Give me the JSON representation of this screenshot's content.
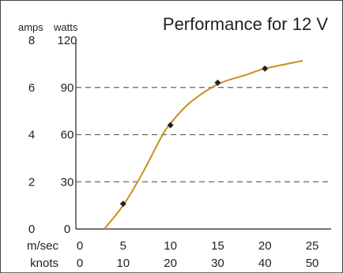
{
  "chart_data": {
    "type": "line",
    "title": "Performance for 12 V",
    "y_axes": [
      {
        "label": "amps",
        "ticks": [
          0,
          2,
          4,
          6,
          8
        ],
        "range": [
          0,
          8
        ]
      },
      {
        "label": "watts",
        "ticks": [
          0,
          30,
          60,
          90,
          120
        ],
        "range": [
          0,
          120
        ]
      }
    ],
    "x_axes": [
      {
        "label": "m/sec",
        "ticks": [
          0,
          5,
          10,
          15,
          20,
          25
        ],
        "range": [
          0,
          27
        ]
      },
      {
        "label": "knots",
        "ticks": [
          0,
          10,
          20,
          30,
          40,
          50
        ]
      }
    ],
    "gridlines_watts": [
      30,
      60,
      90
    ],
    "grid": "dashed horizontal",
    "series": [
      {
        "color": "#c8901e",
        "x": [
          3,
          5,
          7,
          9,
          10,
          12,
          15,
          18,
          20,
          24
        ],
        "y": [
          0,
          15,
          35,
          58,
          67,
          80,
          92,
          98,
          102,
          107
        ],
        "markers": [
          {
            "x": 5,
            "y": 16
          },
          {
            "x": 10,
            "y": 66
          },
          {
            "x": 15,
            "y": 93
          },
          {
            "x": 20,
            "y": 102
          }
        ]
      }
    ],
    "colors": {
      "title": "#c8901e",
      "line": "#c8901e",
      "grid": "#666666",
      "marker": "#222222"
    }
  }
}
